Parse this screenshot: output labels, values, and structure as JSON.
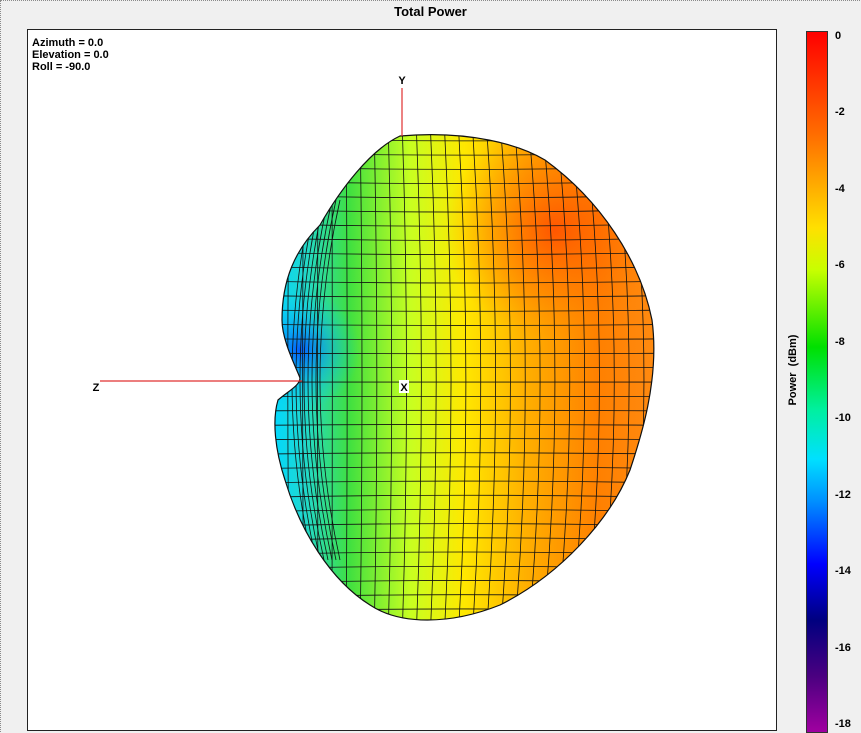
{
  "window": {
    "title": "Total Power"
  },
  "view": {
    "azimuth": "Azimuth = 0.0",
    "elevation": "Elevation = 0.0",
    "roll": "Roll = -90.0"
  },
  "axes": {
    "y": "Y",
    "z": "Z",
    "x": "X"
  },
  "chart_data": {
    "type": "3d-radiation-pattern",
    "title": "Total Power",
    "colorbar": {
      "label": "Power  (dBm)",
      "ticks": [
        0,
        -2,
        -4,
        -6,
        -8,
        -10,
        -12,
        -14,
        -16,
        -18
      ],
      "range": [
        -18,
        0
      ],
      "colormap": [
        "#ff0000",
        "#ff8000",
        "#ffff00",
        "#00ff00",
        "#00ffff",
        "#0000ff",
        "#000080",
        "#a000a0"
      ]
    },
    "surface": {
      "max_power_dBm": -1.5,
      "min_power_dBm": -10.5,
      "max_direction": "upper-right",
      "min_direction": "left (toward -Z side)"
    }
  }
}
